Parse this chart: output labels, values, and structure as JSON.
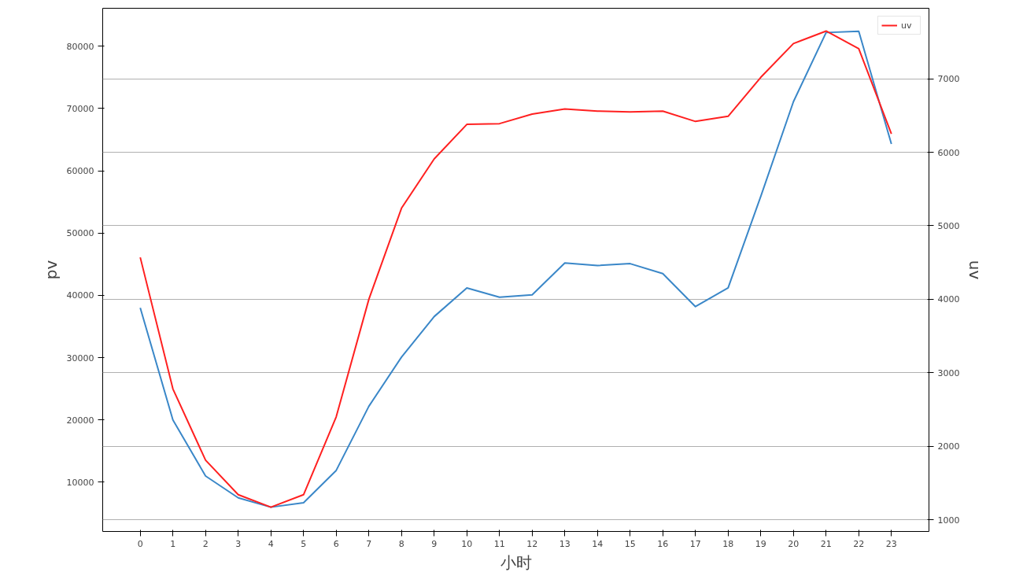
{
  "chart_data": {
    "type": "line",
    "xlabel": "小时",
    "ylabel": "pv",
    "y2label": "uv",
    "x": [
      0,
      1,
      2,
      3,
      4,
      5,
      6,
      7,
      8,
      9,
      10,
      11,
      12,
      13,
      14,
      15,
      16,
      17,
      18,
      19,
      20,
      21,
      22,
      23
    ],
    "xlim": [
      -1.15,
      24.15
    ],
    "xticks": [
      0,
      1,
      2,
      3,
      4,
      5,
      6,
      7,
      8,
      9,
      10,
      11,
      12,
      13,
      14,
      15,
      16,
      17,
      18,
      19,
      20,
      21,
      22,
      23
    ],
    "ylim": [
      2100,
      86100
    ],
    "yticks": [
      10000,
      20000,
      30000,
      40000,
      50000,
      60000,
      70000,
      80000
    ],
    "y2lim": [
      840,
      7960
    ],
    "y2ticks": [
      1000,
      2000,
      3000,
      4000,
      5000,
      6000,
      7000
    ],
    "grid": "y2",
    "legend": "top right",
    "marker": "none",
    "line_style": "solid",
    "series": [
      {
        "color": "#3a87c8",
        "values": [
          38000,
          20000,
          11000,
          7500,
          6000,
          6700,
          11900,
          22200,
          30100,
          36600,
          41200,
          39700,
          40100,
          45200,
          44800,
          45100,
          43500,
          38200,
          41200,
          55900,
          71100,
          82200,
          82400,
          64300
        ]
      },
      {
        "name": "uv",
        "color": "#ff2020",
        "axis": "y2",
        "values": [
          4570,
          2780,
          1810,
          1340,
          1170,
          1340,
          2400,
          4000,
          5240,
          5910,
          6380,
          6390,
          6520,
          6590,
          6560,
          6550,
          6560,
          6420,
          6490,
          7020,
          7480,
          7650,
          7410,
          6250
        ]
      }
    ]
  }
}
